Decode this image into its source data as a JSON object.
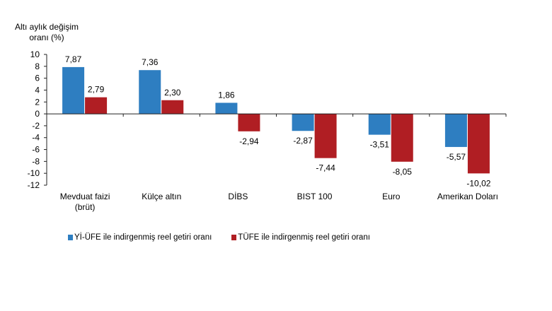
{
  "chart_data": {
    "type": "bar",
    "ylabel_line1": "Altı aylık değişim",
    "ylabel_line2": "oranı (%)",
    "ylim": [
      -12,
      10
    ],
    "yticks": [
      10,
      8,
      6,
      4,
      2,
      0,
      -2,
      -4,
      -6,
      -8,
      -10,
      -12
    ],
    "categories": [
      [
        "Mevduat faizi",
        "(brüt)"
      ],
      [
        "Külçe altın"
      ],
      [
        "DİBS"
      ],
      [
        "BIST 100"
      ],
      [
        "Euro"
      ],
      [
        "Amerikan Doları"
      ]
    ],
    "series": [
      {
        "name": "Yİ-ÜFE ile indirgenmiş reel getiri oranı",
        "color": "#2e7ec1",
        "values": [
          7.87,
          7.36,
          1.86,
          -2.87,
          -3.51,
          -5.57
        ],
        "labels": [
          "7,87",
          "7,36",
          "1,86",
          "-2,87",
          "-3,51",
          "-5,57"
        ]
      },
      {
        "name": "TÜFE ile indirgenmiş reel getiri oranı",
        "color": "#b01e23",
        "values": [
          2.79,
          2.3,
          -2.94,
          -7.44,
          -8.05,
          -10.02
        ],
        "labels": [
          "2,79",
          "2,30",
          "-2,94",
          "-7,44",
          "-8,05",
          "-10,02"
        ]
      }
    ],
    "grid": false,
    "legend_position": "bottom"
  }
}
